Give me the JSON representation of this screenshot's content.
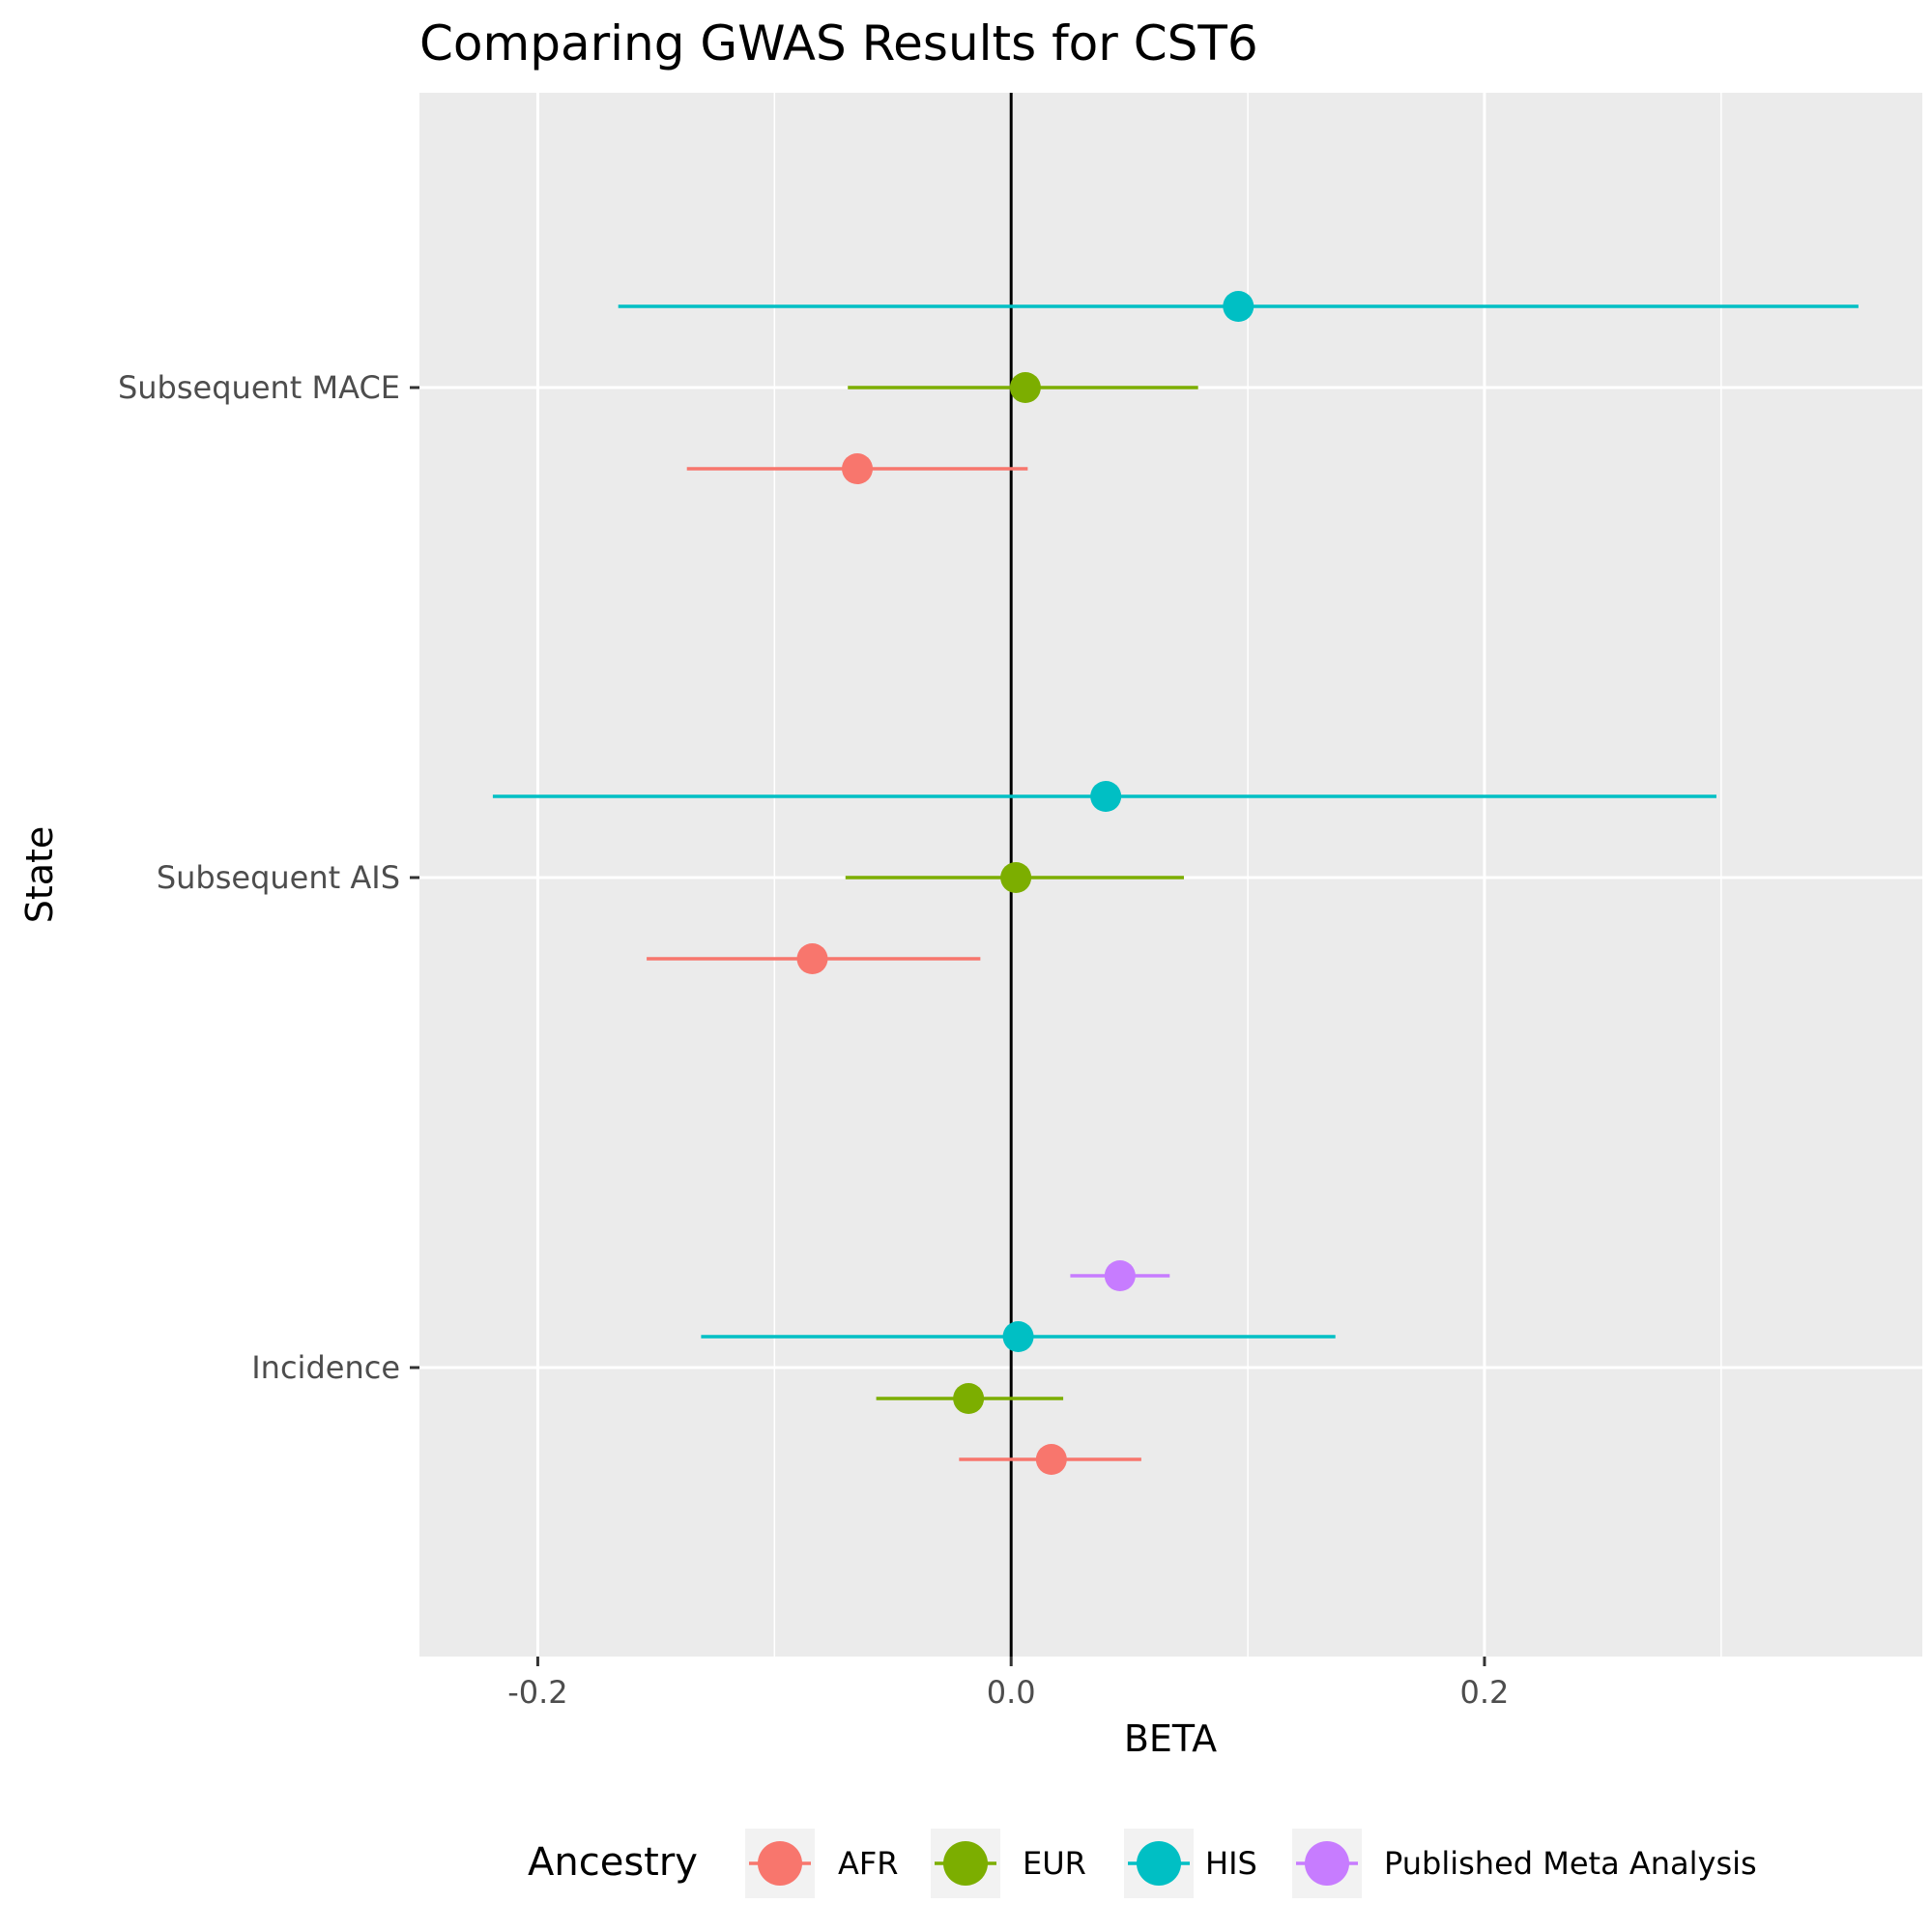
{
  "chart_data": {
    "type": "scatter",
    "subtype": "forest-plot",
    "title": "Comparing GWAS Results for CST6",
    "xlabel": "BETA",
    "ylabel": "State",
    "xlim": [
      -0.25,
      0.385
    ],
    "xticks": [
      -0.2,
      0.0,
      0.2
    ],
    "xtick_labels": [
      "-0.2",
      "0.0",
      "0.2"
    ],
    "categories": [
      "Incidence",
      "Subsequent AIS",
      "Subsequent MACE"
    ],
    "grid": true,
    "reference_line": 0,
    "legend": {
      "title": "Ancestry",
      "position": "bottom"
    },
    "series": [
      {
        "name": "AFR",
        "color": "#F8766D",
        "points": [
          {
            "category": "Incidence",
            "beta": 0.017,
            "lower": -0.022,
            "upper": 0.055
          },
          {
            "category": "Subsequent AIS",
            "beta": -0.084,
            "lower": -0.154,
            "upper": -0.013
          },
          {
            "category": "Subsequent MACE",
            "beta": -0.065,
            "lower": -0.137,
            "upper": 0.007
          }
        ]
      },
      {
        "name": "EUR",
        "color": "#7CAE00",
        "points": [
          {
            "category": "Incidence",
            "beta": -0.018,
            "lower": -0.057,
            "upper": 0.022
          },
          {
            "category": "Subsequent AIS",
            "beta": 0.002,
            "lower": -0.07,
            "upper": 0.073
          },
          {
            "category": "Subsequent MACE",
            "beta": 0.006,
            "lower": -0.069,
            "upper": 0.079
          }
        ]
      },
      {
        "name": "HIS",
        "color": "#00BFC4",
        "points": [
          {
            "category": "Incidence",
            "beta": 0.003,
            "lower": -0.131,
            "upper": 0.137
          },
          {
            "category": "Subsequent AIS",
            "beta": 0.04,
            "lower": -0.219,
            "upper": 0.298
          },
          {
            "category": "Subsequent MACE",
            "beta": 0.096,
            "lower": -0.166,
            "upper": 0.358
          }
        ]
      },
      {
        "name": "Published Meta Analysis",
        "color": "#C77CFF",
        "points": [
          {
            "category": "Incidence",
            "beta": 0.046,
            "lower": 0.025,
            "upper": 0.067
          }
        ]
      }
    ]
  }
}
